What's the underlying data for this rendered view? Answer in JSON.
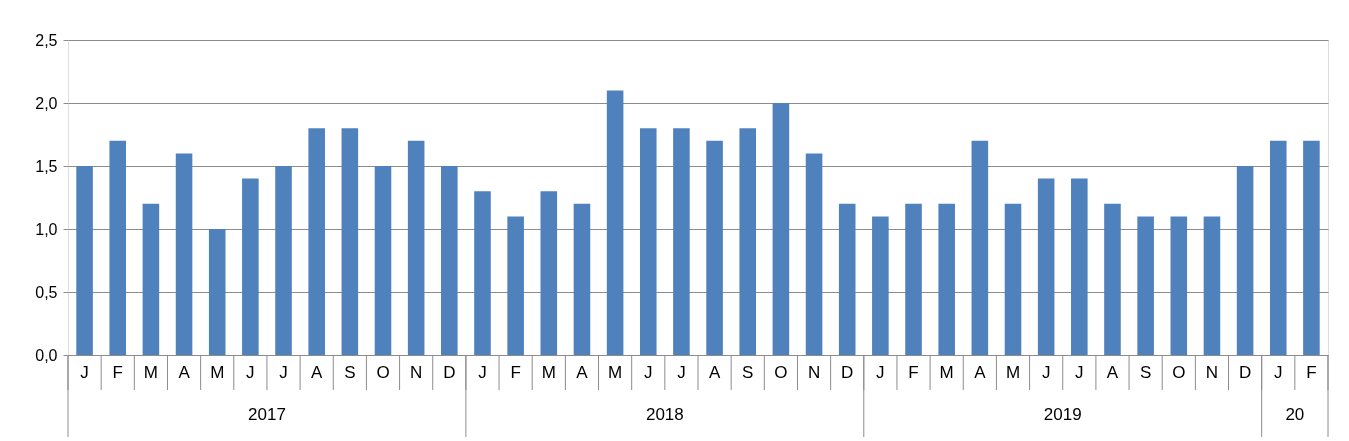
{
  "chart_data": {
    "type": "bar",
    "categories": [
      "J",
      "F",
      "M",
      "A",
      "M",
      "J",
      "J",
      "A",
      "S",
      "O",
      "N",
      "D",
      "J",
      "F",
      "M",
      "A",
      "M",
      "J",
      "J",
      "A",
      "S",
      "O",
      "N",
      "D",
      "J",
      "F",
      "M",
      "A",
      "M",
      "J",
      "J",
      "A",
      "S",
      "O",
      "N",
      "D",
      "J",
      "F"
    ],
    "values": [
      1.5,
      1.7,
      1.2,
      1.6,
      1.0,
      1.4,
      1.5,
      1.8,
      1.8,
      1.5,
      1.7,
      1.5,
      1.3,
      1.1,
      1.3,
      1.2,
      2.1,
      1.8,
      1.8,
      1.7,
      1.8,
      2.0,
      1.6,
      1.2,
      1.1,
      1.2,
      1.2,
      1.7,
      1.2,
      1.4,
      1.4,
      1.2,
      1.1,
      1.1,
      1.1,
      1.5,
      1.7,
      1.7
    ],
    "color": "#4f81bd",
    "ylim": [
      0,
      2.5
    ],
    "yticks": [
      {
        "value": 0,
        "label": "0,0"
      },
      {
        "value": 0.5,
        "label": "0,5"
      },
      {
        "value": 1,
        "label": "1,0"
      },
      {
        "value": 1.5,
        "label": "1,5"
      },
      {
        "value": 2,
        "label": "2,0"
      },
      {
        "value": 2.5,
        "label": "2,5"
      }
    ],
    "grid": "y",
    "annotations": [
      "2017",
      "2018",
      "2019",
      "20"
    ]
  }
}
